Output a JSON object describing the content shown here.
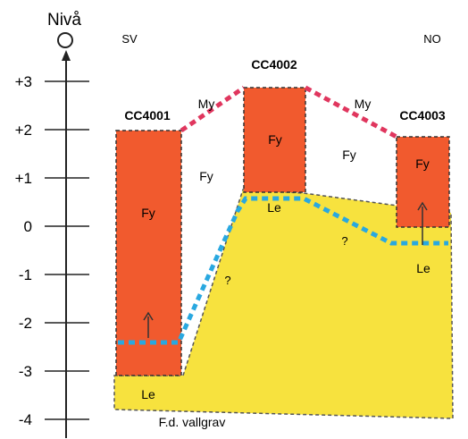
{
  "axis": {
    "title": "Nivå",
    "ticks": [
      {
        "label": "+3",
        "value": 3
      },
      {
        "label": "+2",
        "value": 2
      },
      {
        "label": "+1",
        "value": 1
      },
      {
        "label": "0",
        "value": 0
      },
      {
        "label": "-1",
        "value": -1
      },
      {
        "label": "-2",
        "value": -2
      },
      {
        "label": "-3",
        "value": -3
      },
      {
        "label": "-4",
        "value": -4
      }
    ]
  },
  "orientation": {
    "left": "SV",
    "right": "NO"
  },
  "cores": [
    {
      "id": "CC4001",
      "top_level": 2.0,
      "bottom_level": -3.0,
      "label": "Fy"
    },
    {
      "id": "CC4002",
      "top_level": 2.9,
      "bottom_level": 0.7,
      "label": "Fy"
    },
    {
      "id": "CC4003",
      "top_level": 1.8,
      "bottom_level": 0.0,
      "label": "Fy"
    }
  ],
  "labels": {
    "myr_left": "My",
    "myr_right": "My",
    "fill_left": "Fy",
    "fill_right": "Fy",
    "clay_core2": "Le",
    "clay_bottom": "Le",
    "clay_right": "Le",
    "question_left": "?",
    "question_right": "?",
    "moat": "F.d. vallgrav"
  },
  "colors": {
    "core": "#f15a2e",
    "clay": "#f7e23e",
    "peat_line": "#e0365e",
    "water_line": "#29a8e0",
    "frame": "#333333"
  }
}
